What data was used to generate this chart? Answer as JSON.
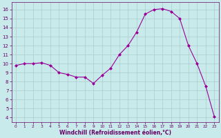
{
  "x": [
    0,
    1,
    2,
    3,
    4,
    5,
    6,
    7,
    8,
    9,
    10,
    11,
    12,
    13,
    14,
    15,
    16,
    17,
    18,
    19,
    20,
    21,
    22,
    23
  ],
  "y": [
    9.8,
    10.0,
    10.0,
    10.1,
    9.8,
    9.0,
    8.8,
    8.5,
    8.5,
    7.8,
    8.7,
    9.5,
    11.0,
    12.0,
    13.5,
    15.5,
    16.0,
    16.1,
    15.8,
    15.0,
    12.0,
    10.0,
    7.5,
    4.1
  ],
  "line_color": "#990099",
  "marker": "D",
  "marker_size": 2,
  "bg_color": "#c8eaea",
  "grid_color": "#aacccc",
  "xlabel": "Windchill (Refroidissement éolien,°C)",
  "ylim": [
    3.5,
    16.8
  ],
  "xlim": [
    -0.5,
    23.5
  ],
  "yticks": [
    4,
    5,
    6,
    7,
    8,
    9,
    10,
    11,
    12,
    13,
    14,
    15,
    16
  ],
  "xticks": [
    0,
    1,
    2,
    3,
    4,
    5,
    6,
    7,
    8,
    9,
    10,
    11,
    12,
    13,
    14,
    15,
    16,
    17,
    18,
    19,
    20,
    21,
    22,
    23
  ],
  "label_color": "#660066",
  "tick_fontsize": 5,
  "xlabel_fontsize": 5.5
}
